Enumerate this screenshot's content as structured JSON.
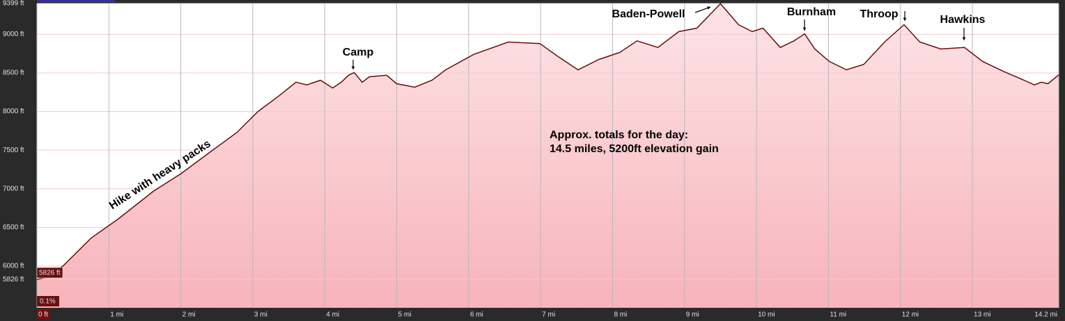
{
  "chart_data": {
    "type": "area",
    "x": [
      0,
      0.16,
      0.36,
      0.75,
      1.13,
      1.62,
      2.0,
      2.39,
      2.78,
      3.07,
      3.36,
      3.6,
      3.75,
      3.94,
      4.11,
      4.23,
      4.33,
      4.41,
      4.52,
      4.62,
      4.86,
      5.0,
      5.25,
      5.49,
      5.68,
      6.07,
      6.55,
      6.99,
      7.23,
      7.52,
      7.81,
      8.1,
      8.34,
      8.63,
      8.92,
      9.17,
      9.5,
      9.75,
      9.94,
      10.09,
      10.33,
      10.52,
      10.67,
      10.81,
      11.01,
      11.25,
      11.49,
      11.78,
      12.05,
      12.27,
      12.56,
      12.89,
      13.14,
      13.43,
      13.72,
      13.86,
      13.96,
      14.05,
      14.2
    ],
    "values": [
      5826,
      5865,
      6000,
      6360,
      6610,
      6970,
      7195,
      7465,
      7730,
      8000,
      8200,
      8380,
      8345,
      8405,
      8305,
      8380,
      8470,
      8505,
      8380,
      8450,
      8470,
      8360,
      8315,
      8405,
      8540,
      8740,
      8900,
      8880,
      8720,
      8540,
      8675,
      8765,
      8915,
      8830,
      9035,
      9080,
      9395,
      9125,
      9035,
      9080,
      8830,
      8915,
      9005,
      8810,
      8650,
      8540,
      8610,
      8900,
      9125,
      8900,
      8810,
      8830,
      8650,
      8520,
      8405,
      8345,
      8380,
      8360,
      8475
    ],
    "color": "#6b0a0a",
    "fill": "#f7b3ba",
    "xlim": [
      0,
      14.2
    ],
    "ylim": [
      5460,
      9399
    ],
    "xticks": [
      {
        "value": 0,
        "label": "0 ft"
      },
      {
        "value": 1,
        "label": "1 mi"
      },
      {
        "value": 2,
        "label": "2 mi"
      },
      {
        "value": 3,
        "label": "3 mi"
      },
      {
        "value": 4,
        "label": "4 mi"
      },
      {
        "value": 5,
        "label": "5 mi"
      },
      {
        "value": 6,
        "label": "6 mi"
      },
      {
        "value": 7,
        "label": "7 mi"
      },
      {
        "value": 8,
        "label": "8 mi"
      },
      {
        "value": 9,
        "label": "9 mi"
      },
      {
        "value": 10,
        "label": "10 mi"
      },
      {
        "value": 11,
        "label": "11 mi"
      },
      {
        "value": 12,
        "label": "12 mi"
      },
      {
        "value": 13,
        "label": "13 mi"
      },
      {
        "value": 14.2,
        "label": "14.2 mi"
      }
    ],
    "yticks": [
      {
        "value": 5826,
        "label": "5826 ft"
      },
      {
        "value": 6000,
        "label": "6000 ft"
      },
      {
        "value": 6500,
        "label": "6500 ft"
      },
      {
        "value": 7000,
        "label": "7000 ft"
      },
      {
        "value": 7500,
        "label": "7500 ft"
      },
      {
        "value": 8000,
        "label": "8000 ft"
      },
      {
        "value": 8500,
        "label": "8500 ft"
      },
      {
        "value": 9000,
        "label": "9000 ft"
      },
      {
        "value": 9399,
        "label": "9399 ft"
      }
    ],
    "grid": true,
    "cursor_elevation": "5826 ft",
    "cursor_grade": "0.1%",
    "annotations": [
      "Hike with heavy packs",
      "Camp",
      "Baden-Powell",
      "Burnham",
      "Throop",
      "Hawkins",
      "Approx. totals for the day:",
      "14.5 miles, 5200ft elevation gain"
    ]
  }
}
